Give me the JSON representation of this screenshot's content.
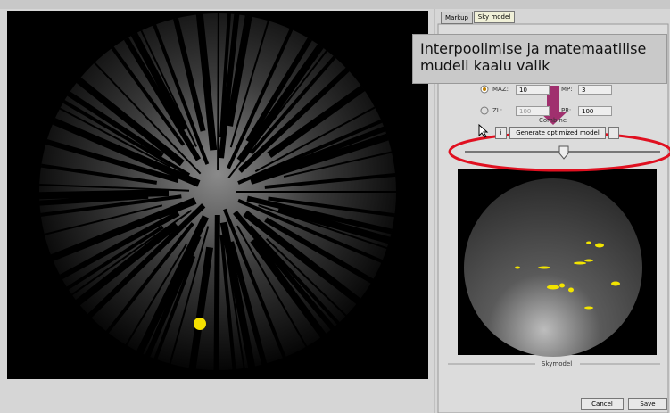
{
  "tabs": [
    "Markup",
    "Sky model"
  ],
  "callout": "Interpoolimise ja matemaatilise mudeli kaalu valik",
  "fields": [
    {
      "label": "MAZ:",
      "value": "10"
    },
    {
      "label": "MP:",
      "value": "3"
    },
    {
      "label": "ZL:",
      "value": "100"
    },
    {
      "label": "PR:",
      "value": "100"
    }
  ],
  "combine": "Combine",
  "info_button": "i",
  "generate_button": "Generate optimized model",
  "skymodel_label": "Skymodel",
  "cancel_button": "Cancel",
  "save_button": "Save"
}
